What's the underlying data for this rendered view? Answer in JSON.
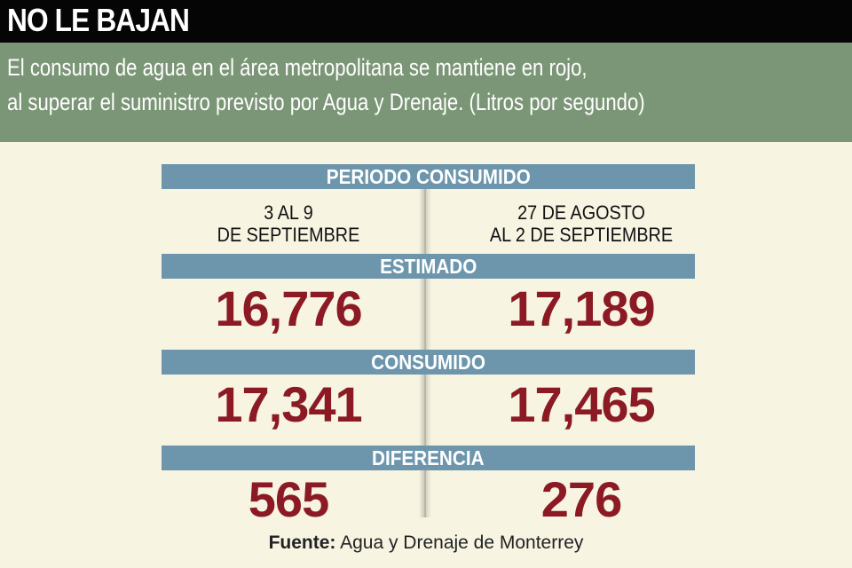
{
  "header": {
    "title": "NO LE BAJAN",
    "subtitle_lines": [
      "El consumo de agua en el área metropolitana se mantiene en rojo,",
      "al superar el suministro previsto por Agua y Drenaje. (Litros por segundo)"
    ]
  },
  "colors": {
    "header_bg": "#050505",
    "subtitle_bg": "#7b9676",
    "bar_bg": "#6d96ad",
    "number": "#8c1a24",
    "background": "#f7f4e2"
  },
  "chart_data": {
    "type": "table",
    "title": "NO LE BAJAN",
    "column_header": "PERIODO CONSUMIDO",
    "columns": [
      [
        "3 AL 9",
        "DE SEPTIEMBRE"
      ],
      [
        "27 DE AGOSTO",
        "AL 2 DE SEPTIEMBRE"
      ]
    ],
    "rows": [
      {
        "label": "ESTIMADO",
        "values": [
          "16,776",
          "17,189"
        ]
      },
      {
        "label": "CONSUMIDO",
        "values": [
          "17,341",
          "17,465"
        ]
      },
      {
        "label": "DIFERENCIA",
        "values": [
          "565",
          "276"
        ]
      }
    ]
  },
  "source": {
    "label": "Fuente:",
    "text": " Agua y Drenaje de Monterrey"
  }
}
